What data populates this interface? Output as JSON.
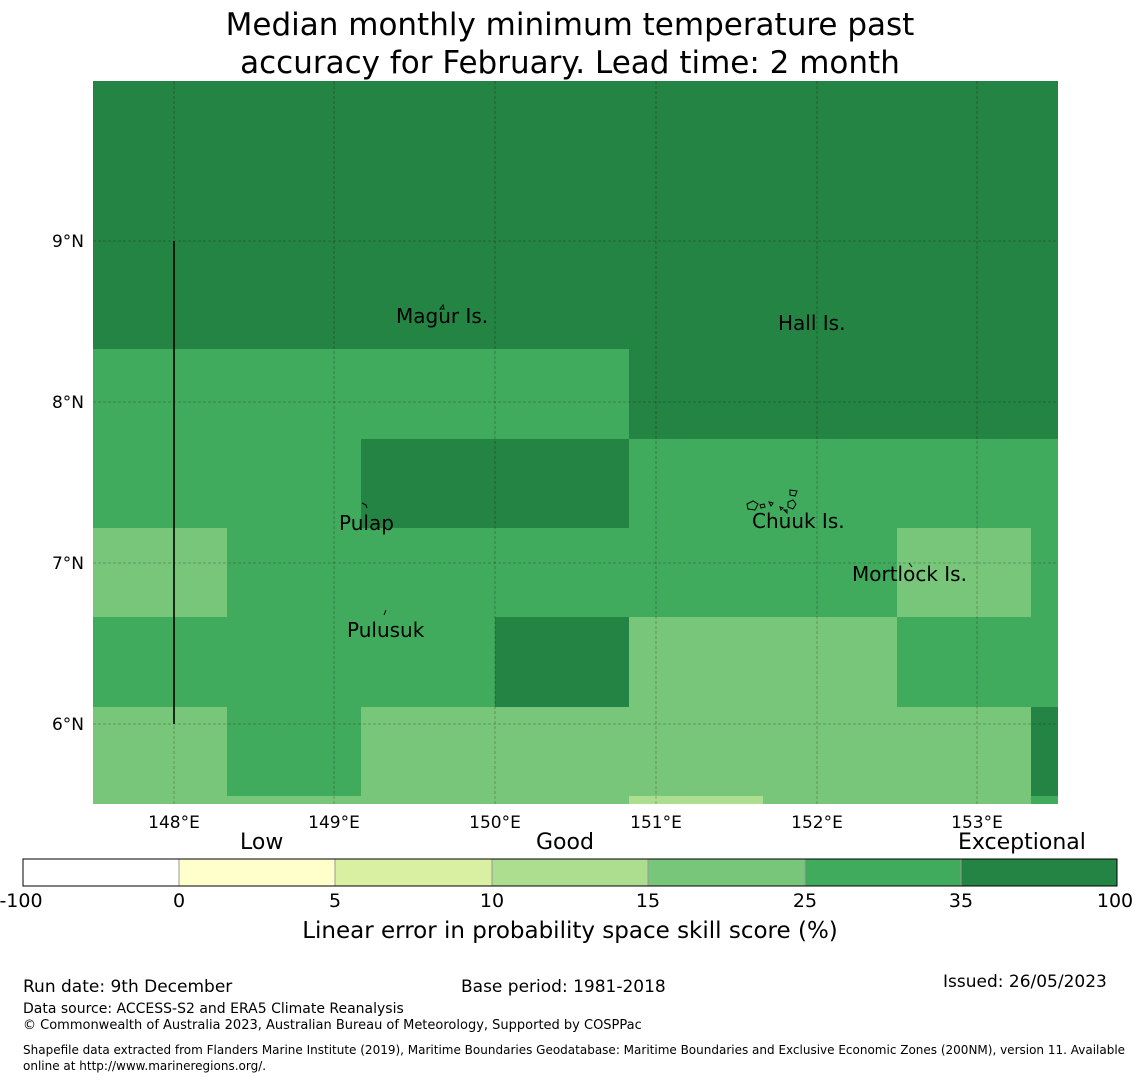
{
  "title": {
    "line1": "Median monthly minimum temperature past",
    "line2": "accuracy for February. Lead time: 2 month"
  },
  "map": {
    "lon_labels": [
      "148°E",
      "149°E",
      "150°E",
      "151°E",
      "152°E",
      "153°E"
    ],
    "lat_labels": [
      "9°N",
      "8°N",
      "7°N",
      "6°N"
    ],
    "places": [
      "Magur Is.",
      "Hall Is.",
      "Pulap",
      "Chuuk Is.",
      "Mortlock Is.",
      "Pulusuk"
    ]
  },
  "legend": {
    "categories": [
      "Low",
      "Good",
      "Exceptional"
    ],
    "ticks": [
      "-100",
      "0",
      "5",
      "10",
      "15",
      "25",
      "35",
      "100"
    ],
    "colors": [
      "#ffffff",
      "#ffffcc",
      "#d9f0a3",
      "#addd8e",
      "#78c679",
      "#41ab5d",
      "#238443"
    ],
    "label": "Linear error in probability space skill score (%)"
  },
  "footer": {
    "run_date": "Run date: 9th December",
    "base_period": "Base period: 1981-2018",
    "issued": "Issued: 26/05/2023",
    "data_source": "Data source: ACCESS-S2 and ERA5 Climate Reanalysis",
    "copyright": "© Commonwealth of Australia 2023, Australian Bureau of Meteorology, Supported by COSPPac",
    "shapefile": "Shapefile data extracted from Flanders Marine Institute (2019), Maritime Boundaries Geodatabase: Maritime Boundaries and Exclusive Economic Zones (200NM), version 11. Available online at http://www.marineregions.org/."
  }
}
